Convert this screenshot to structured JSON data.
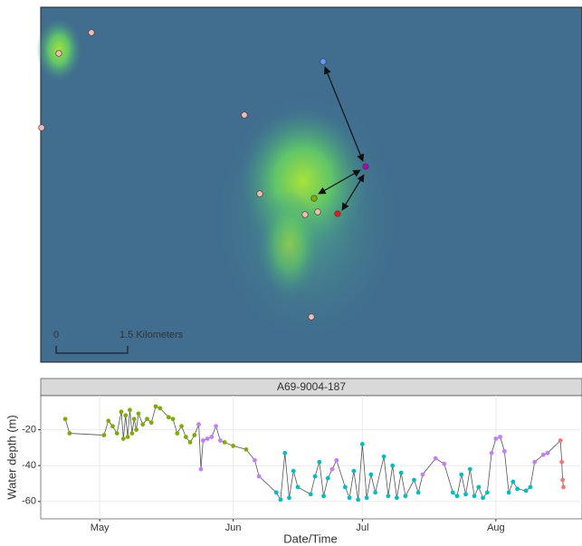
{
  "map": {
    "scale_bar": {
      "start": "0",
      "label": "1.5 Kilometers"
    }
  },
  "chart_data": {
    "type": "line",
    "facet_label": "A69-9004-187",
    "x_label": "Date/Time",
    "y_label": "Water depth (m)",
    "xlim": [
      -13.7,
      112
    ],
    "xticks": [
      {
        "value": 0,
        "label": "May"
      },
      {
        "value": 31,
        "label": "Jun"
      },
      {
        "value": 61,
        "label": "Jul"
      },
      {
        "value": 92,
        "label": "Aug"
      }
    ],
    "ylim": [
      -69.7,
      -1
    ],
    "yticks": [
      -20,
      -40,
      -60
    ],
    "grid": true,
    "line_color": "#555555",
    "series": [
      {
        "x": [
          -8,
          -7,
          1,
          2,
          3,
          4,
          5,
          5.5,
          6,
          6.5,
          7,
          7.5,
          8,
          8.5,
          9,
          10,
          11,
          12,
          13,
          14,
          16,
          17,
          18,
          19,
          20,
          21,
          22,
          23,
          23.5,
          24,
          25,
          26,
          27,
          28,
          29,
          31,
          34,
          36,
          37,
          41,
          42,
          43,
          44,
          45,
          46,
          49,
          50,
          51,
          52,
          53,
          54,
          55,
          57,
          58,
          59,
          60,
          61,
          62,
          63,
          64,
          66,
          67,
          68,
          69,
          70,
          71,
          73,
          74,
          75,
          78,
          80,
          82,
          83,
          84,
          85,
          86,
          87,
          88,
          89,
          90,
          91,
          92,
          93,
          94,
          95,
          96,
          97,
          99,
          100,
          101,
          103,
          104,
          107,
          107.3,
          107.5,
          107.7
        ],
        "values": [
          -14,
          -22,
          -23,
          -15,
          -18,
          -22,
          -10,
          -25,
          -12,
          -24,
          -9,
          -22,
          -14,
          -20,
          -11,
          -17,
          -14,
          -16,
          -7,
          -8,
          -13,
          -14,
          -22,
          -18,
          -24,
          -27,
          -23,
          -17,
          -42,
          -26,
          -25,
          -24,
          -18,
          -26,
          -27,
          -29,
          -31,
          -37,
          -46,
          -55,
          -59,
          -33,
          -58,
          -43,
          -52,
          -56,
          -46,
          -38,
          -57,
          -47,
          -42,
          -37,
          -52,
          -58,
          -43,
          -59,
          -28,
          -58,
          -45,
          -55,
          -35,
          -57,
          -40,
          -58,
          -44,
          -57,
          -48,
          -55,
          -45,
          -36,
          -39,
          -55,
          -57,
          -45,
          -56,
          -42,
          -57,
          -52,
          -58,
          -55,
          -33,
          -25,
          -24,
          -32,
          -55,
          -49,
          -53,
          -54,
          -52,
          -38,
          -34,
          -33,
          -26,
          -38,
          -48,
          -52
        ],
        "colors": [
          "#7cae00",
          "#7cae00",
          "#7cae00",
          "#7cae00",
          "#7cae00",
          "#7cae00",
          "#7cae00",
          "#7cae00",
          "#7cae00",
          "#7cae00",
          "#7cae00",
          "#7cae00",
          "#7cae00",
          "#7cae00",
          "#7cae00",
          "#7cae00",
          "#7cae00",
          "#7cae00",
          "#7cae00",
          "#7cae00",
          "#7cae00",
          "#7cae00",
          "#7cae00",
          "#7cae00",
          "#7cae00",
          "#7cae00",
          "#7cae00",
          "#c77cff",
          "#c77cff",
          "#c77cff",
          "#c77cff",
          "#c77cff",
          "#c77cff",
          "#c77cff",
          "#7cae00",
          "#7cae00",
          "#7cae00",
          "#c77cff",
          "#c77cff",
          "#00bfc4",
          "#00bfc4",
          "#00bfc4",
          "#00bfc4",
          "#00bfc4",
          "#00bfc4",
          "#00bfc4",
          "#00bfc4",
          "#00bfc4",
          "#00bfc4",
          "#00bfc4",
          "#c77cff",
          "#c77cff",
          "#00bfc4",
          "#00bfc4",
          "#00bfc4",
          "#00bfc4",
          "#00bfc4",
          "#00bfc4",
          "#00bfc4",
          "#00bfc4",
          "#00bfc4",
          "#00bfc4",
          "#00bfc4",
          "#00bfc4",
          "#00bfc4",
          "#00bfc4",
          "#00bfc4",
          "#00bfc4",
          "#c77cff",
          "#c77cff",
          "#c77cff",
          "#00bfc4",
          "#00bfc4",
          "#00bfc4",
          "#00bfc4",
          "#00bfc4",
          "#00bfc4",
          "#00bfc4",
          "#00bfc4",
          "#00bfc4",
          "#c77cff",
          "#c77cff",
          "#c77cff",
          "#c77cff",
          "#00bfc4",
          "#00bfc4",
          "#00bfc4",
          "#00bfc4",
          "#00bfc4",
          "#c77cff",
          "#c77cff",
          "#c77cff",
          "#f8766d",
          "#f8766d",
          "#f8766d",
          "#f8766d"
        ]
      }
    ]
  }
}
